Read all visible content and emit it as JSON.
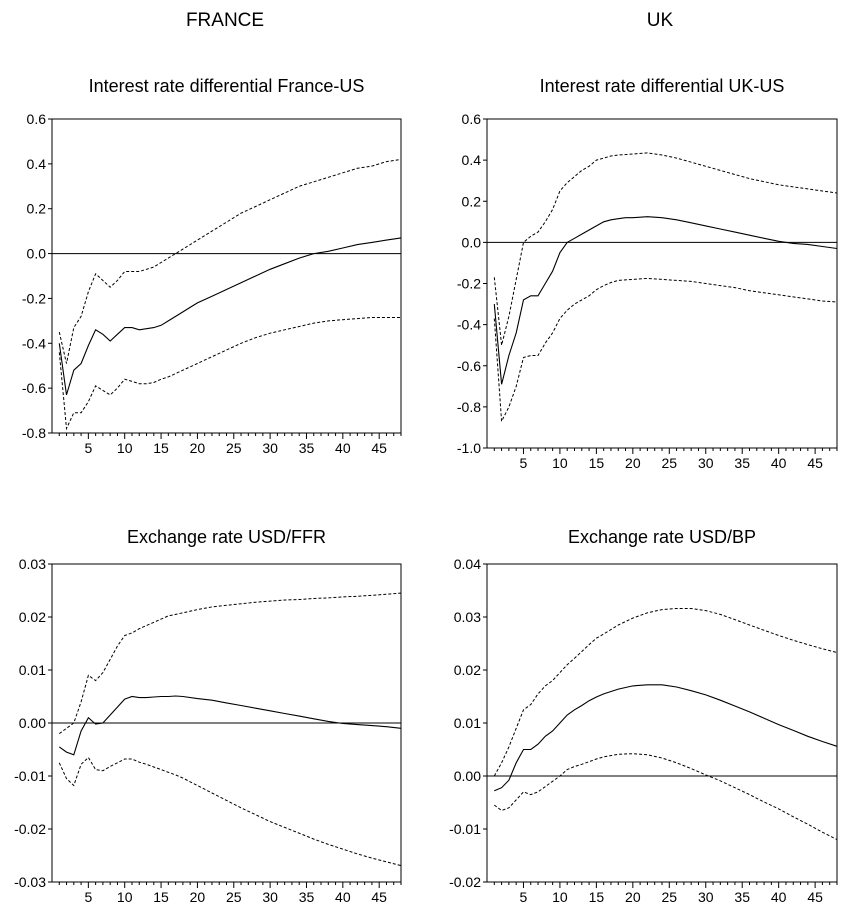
{
  "columns": [
    "FRANCE",
    "UK"
  ],
  "chart_data": [
    {
      "type": "line",
      "title": "Interest rate differential France-US",
      "xlabel": "",
      "ylabel": "",
      "xlim": [
        1,
        48
      ],
      "ylim": [
        -0.8,
        0.6
      ],
      "yticks": [
        "0.6",
        "0.4",
        "0.2",
        "0.0",
        "-0.2",
        "-0.4",
        "-0.6",
        "-0.8"
      ],
      "yvals": [
        0.6,
        0.4,
        0.2,
        0.0,
        -0.2,
        -0.4,
        -0.6,
        -0.8
      ],
      "xticks": [
        "5",
        "10",
        "15",
        "20",
        "25",
        "30",
        "35",
        "40",
        "45"
      ],
      "zero_line": true,
      "series": [
        {
          "style": "solid",
          "x": [
            1,
            2,
            3,
            4,
            5,
            6,
            7,
            8,
            9,
            10,
            11,
            12,
            13,
            14,
            15,
            16,
            17,
            18,
            19,
            20,
            22,
            24,
            26,
            28,
            30,
            32,
            34,
            36,
            38,
            40,
            42,
            44,
            46,
            48
          ],
          "y": [
            -0.4,
            -0.63,
            -0.52,
            -0.49,
            -0.41,
            -0.34,
            -0.36,
            -0.39,
            -0.36,
            -0.33,
            -0.33,
            -0.34,
            -0.335,
            -0.33,
            -0.32,
            -0.3,
            -0.28,
            -0.26,
            -0.24,
            -0.22,
            -0.19,
            -0.16,
            -0.13,
            -0.1,
            -0.07,
            -0.045,
            -0.02,
            0.0,
            0.01,
            0.025,
            0.04,
            0.05,
            0.06,
            0.07
          ]
        },
        {
          "style": "dashed",
          "x": [
            1,
            2,
            3,
            4,
            5,
            6,
            7,
            8,
            9,
            10,
            11,
            12,
            13,
            14,
            15,
            16,
            17,
            18,
            20,
            22,
            24,
            26,
            28,
            30,
            32,
            34,
            36,
            38,
            40,
            42,
            44,
            46,
            48
          ],
          "y": [
            -0.35,
            -0.49,
            -0.33,
            -0.28,
            -0.17,
            -0.09,
            -0.12,
            -0.15,
            -0.12,
            -0.08,
            -0.08,
            -0.08,
            -0.07,
            -0.06,
            -0.04,
            -0.02,
            0.0,
            0.02,
            0.06,
            0.1,
            0.14,
            0.18,
            0.21,
            0.24,
            0.27,
            0.3,
            0.32,
            0.34,
            0.36,
            0.38,
            0.39,
            0.41,
            0.42
          ]
        },
        {
          "style": "dashed",
          "x": [
            1,
            2,
            3,
            4,
            5,
            6,
            7,
            8,
            9,
            10,
            11,
            12,
            13,
            14,
            15,
            16,
            18,
            20,
            22,
            24,
            26,
            28,
            30,
            32,
            34,
            36,
            38,
            40,
            42,
            44,
            46,
            48
          ],
          "y": [
            -0.44,
            -0.78,
            -0.71,
            -0.71,
            -0.66,
            -0.59,
            -0.61,
            -0.63,
            -0.6,
            -0.56,
            -0.57,
            -0.58,
            -0.58,
            -0.575,
            -0.56,
            -0.55,
            -0.52,
            -0.49,
            -0.46,
            -0.43,
            -0.4,
            -0.375,
            -0.355,
            -0.34,
            -0.325,
            -0.31,
            -0.3,
            -0.295,
            -0.29,
            -0.285,
            -0.285,
            -0.285
          ]
        }
      ]
    },
    {
      "type": "line",
      "title": "Interest rate differential UK-US",
      "xlabel": "",
      "ylabel": "",
      "xlim": [
        1,
        48
      ],
      "ylim": [
        -1.0,
        0.6
      ],
      "yticks": [
        "0.6",
        "0.4",
        "0.2",
        "0.0",
        "-0.2",
        "-0.4",
        "-0.6",
        "-0.8",
        "-1.0"
      ],
      "yvals": [
        0.6,
        0.4,
        0.2,
        0.0,
        -0.2,
        -0.4,
        -0.6,
        -0.8,
        -1.0
      ],
      "xticks": [
        "5",
        "10",
        "15",
        "20",
        "25",
        "30",
        "35",
        "40",
        "45"
      ],
      "zero_line": true,
      "series": [
        {
          "style": "solid",
          "x": [
            1,
            2,
            3,
            4,
            5,
            6,
            7,
            8,
            9,
            10,
            11,
            12,
            13,
            14,
            15,
            16,
            17,
            18,
            19,
            20,
            22,
            24,
            26,
            28,
            30,
            32,
            34,
            36,
            38,
            40,
            42,
            44,
            46,
            48
          ],
          "y": [
            -0.3,
            -0.69,
            -0.55,
            -0.44,
            -0.28,
            -0.26,
            -0.26,
            -0.2,
            -0.14,
            -0.05,
            0.0,
            0.02,
            0.04,
            0.06,
            0.08,
            0.1,
            0.11,
            0.115,
            0.12,
            0.12,
            0.125,
            0.12,
            0.11,
            0.095,
            0.08,
            0.065,
            0.05,
            0.035,
            0.02,
            0.005,
            -0.005,
            -0.01,
            -0.02,
            -0.03
          ]
        },
        {
          "style": "dashed",
          "x": [
            1,
            2,
            3,
            4,
            5,
            6,
            7,
            8,
            9,
            10,
            11,
            12,
            13,
            14,
            15,
            16,
            17,
            18,
            20,
            22,
            24,
            26,
            28,
            30,
            32,
            34,
            36,
            38,
            40,
            42,
            44,
            46,
            48
          ],
          "y": [
            -0.17,
            -0.5,
            -0.36,
            -0.18,
            0.0,
            0.03,
            0.05,
            0.1,
            0.16,
            0.25,
            0.29,
            0.32,
            0.35,
            0.37,
            0.4,
            0.41,
            0.42,
            0.425,
            0.43,
            0.435,
            0.425,
            0.41,
            0.39,
            0.37,
            0.35,
            0.33,
            0.31,
            0.295,
            0.28,
            0.27,
            0.26,
            0.25,
            0.24
          ]
        },
        {
          "style": "dashed",
          "x": [
            1,
            2,
            3,
            4,
            5,
            6,
            7,
            8,
            9,
            10,
            11,
            12,
            13,
            14,
            15,
            16,
            17,
            18,
            20,
            22,
            24,
            26,
            28,
            30,
            32,
            34,
            36,
            38,
            40,
            42,
            44,
            46,
            48
          ],
          "y": [
            -0.37,
            -0.87,
            -0.8,
            -0.7,
            -0.56,
            -0.55,
            -0.55,
            -0.49,
            -0.44,
            -0.37,
            -0.33,
            -0.3,
            -0.28,
            -0.26,
            -0.23,
            -0.21,
            -0.195,
            -0.185,
            -0.18,
            -0.175,
            -0.18,
            -0.185,
            -0.19,
            -0.2,
            -0.21,
            -0.22,
            -0.235,
            -0.245,
            -0.255,
            -0.265,
            -0.275,
            -0.285,
            -0.29
          ]
        }
      ]
    },
    {
      "type": "line",
      "title": "Exchange rate USD/FFR",
      "xlabel": "",
      "ylabel": "",
      "xlim": [
        1,
        48
      ],
      "ylim": [
        -0.03,
        0.03
      ],
      "yticks": [
        "0.03",
        "0.02",
        "0.01",
        "0.00",
        "-0.01",
        "-0.02",
        "-0.03"
      ],
      "yvals": [
        0.03,
        0.02,
        0.01,
        0.0,
        -0.01,
        -0.02,
        -0.03
      ],
      "xticks": [
        "5",
        "10",
        "15",
        "20",
        "25",
        "30",
        "35",
        "40",
        "45"
      ],
      "zero_line": true,
      "series": [
        {
          "style": "solid",
          "x": [
            1,
            2,
            3,
            4,
            5,
            6,
            7,
            8,
            9,
            10,
            11,
            12,
            13,
            14,
            15,
            16,
            17,
            18,
            20,
            22,
            24,
            26,
            28,
            30,
            32,
            34,
            36,
            38,
            40,
            42,
            44,
            46,
            48
          ],
          "y": [
            -0.0045,
            -0.0055,
            -0.006,
            -0.0015,
            0.001,
            -0.0002,
            0.0,
            0.0015,
            0.003,
            0.0045,
            0.005,
            0.0048,
            0.0048,
            0.0049,
            0.005,
            0.005,
            0.0051,
            0.005,
            0.0046,
            0.0043,
            0.0038,
            0.0033,
            0.0028,
            0.0023,
            0.0018,
            0.0013,
            0.0008,
            0.0003,
            -0.0001,
            -0.0003,
            -0.0005,
            -0.0007,
            -0.001
          ]
        },
        {
          "style": "dashed",
          "x": [
            1,
            2,
            3,
            4,
            5,
            6,
            7,
            8,
            9,
            10,
            11,
            12,
            13,
            14,
            15,
            16,
            17,
            18,
            20,
            22,
            24,
            26,
            28,
            30,
            32,
            34,
            36,
            38,
            40,
            42,
            44,
            46,
            48
          ],
          "y": [
            -0.002,
            -0.001,
            0.0,
            0.004,
            0.009,
            0.008,
            0.0095,
            0.012,
            0.0145,
            0.0165,
            0.017,
            0.0178,
            0.0184,
            0.019,
            0.0196,
            0.0202,
            0.0205,
            0.0208,
            0.0214,
            0.0219,
            0.0222,
            0.0225,
            0.0228,
            0.023,
            0.0232,
            0.0233,
            0.0235,
            0.0236,
            0.0238,
            0.0239,
            0.0241,
            0.0243,
            0.0245
          ]
        },
        {
          "style": "dashed",
          "x": [
            1,
            2,
            3,
            4,
            5,
            6,
            7,
            8,
            9,
            10,
            11,
            12,
            13,
            14,
            15,
            16,
            17,
            18,
            20,
            22,
            24,
            26,
            28,
            30,
            32,
            34,
            36,
            38,
            40,
            42,
            44,
            46,
            48
          ],
          "y": [
            -0.0075,
            -0.0105,
            -0.0118,
            -0.0078,
            -0.0065,
            -0.0088,
            -0.009,
            -0.0082,
            -0.0075,
            -0.0068,
            -0.0068,
            -0.0074,
            -0.0078,
            -0.0083,
            -0.0088,
            -0.0093,
            -0.0098,
            -0.0104,
            -0.0118,
            -0.0132,
            -0.0146,
            -0.016,
            -0.0173,
            -0.0186,
            -0.0197,
            -0.0208,
            -0.0219,
            -0.0229,
            -0.0238,
            -0.0247,
            -0.0255,
            -0.0262,
            -0.0269
          ]
        }
      ]
    },
    {
      "type": "line",
      "title": "Exchange rate USD/BP",
      "xlabel": "",
      "ylabel": "",
      "xlim": [
        1,
        48
      ],
      "ylim": [
        -0.02,
        0.04
      ],
      "yticks": [
        "0.04",
        "0.03",
        "0.02",
        "0.01",
        "0.00",
        "-0.01",
        "-0.02"
      ],
      "yvals": [
        0.04,
        0.03,
        0.02,
        0.01,
        0.0,
        -0.01,
        -0.02
      ],
      "xticks": [
        "5",
        "10",
        "15",
        "20",
        "25",
        "30",
        "35",
        "40",
        "45"
      ],
      "zero_line": true,
      "series": [
        {
          "style": "solid",
          "x": [
            1,
            2,
            3,
            4,
            5,
            6,
            7,
            8,
            9,
            10,
            11,
            12,
            13,
            14,
            15,
            16,
            18,
            20,
            22,
            24,
            26,
            28,
            30,
            32,
            34,
            36,
            38,
            40,
            42,
            44,
            46,
            48
          ],
          "y": [
            -0.0028,
            -0.0022,
            -0.0008,
            0.0025,
            0.005,
            0.005,
            0.006,
            0.0075,
            0.0085,
            0.01,
            0.0115,
            0.0125,
            0.0133,
            0.0142,
            0.0149,
            0.0155,
            0.0164,
            0.017,
            0.0172,
            0.0172,
            0.0168,
            0.0161,
            0.0153,
            0.0143,
            0.0132,
            0.0121,
            0.0109,
            0.0097,
            0.0086,
            0.0075,
            0.0065,
            0.0056
          ]
        },
        {
          "style": "dashed",
          "x": [
            1,
            2,
            3,
            4,
            5,
            6,
            7,
            8,
            9,
            10,
            11,
            12,
            13,
            14,
            15,
            16,
            18,
            20,
            22,
            24,
            26,
            28,
            30,
            32,
            34,
            36,
            38,
            40,
            42,
            44,
            46,
            48
          ],
          "y": [
            0.0,
            0.0025,
            0.0055,
            0.009,
            0.0125,
            0.0135,
            0.0155,
            0.017,
            0.018,
            0.0195,
            0.021,
            0.0222,
            0.0235,
            0.0248,
            0.026,
            0.0268,
            0.0285,
            0.0298,
            0.0308,
            0.0314,
            0.0316,
            0.0316,
            0.0312,
            0.0305,
            0.0295,
            0.0285,
            0.0275,
            0.0265,
            0.0256,
            0.0248,
            0.024,
            0.0233
          ]
        },
        {
          "style": "dashed",
          "x": [
            1,
            2,
            3,
            4,
            5,
            6,
            7,
            8,
            9,
            10,
            11,
            12,
            13,
            14,
            15,
            16,
            18,
            20,
            22,
            24,
            26,
            28,
            30,
            32,
            34,
            36,
            38,
            40,
            42,
            44,
            46,
            48
          ],
          "y": [
            -0.0055,
            -0.0065,
            -0.006,
            -0.0045,
            -0.003,
            -0.0035,
            -0.003,
            -0.002,
            -0.001,
            0.0,
            0.0012,
            0.0018,
            0.0022,
            0.0027,
            0.0032,
            0.0036,
            0.0041,
            0.0042,
            0.004,
            0.0034,
            0.0025,
            0.0014,
            0.0002,
            -0.0009,
            -0.0022,
            -0.0035,
            -0.0049,
            -0.0062,
            -0.0077,
            -0.0091,
            -0.0106,
            -0.012
          ]
        }
      ]
    }
  ]
}
